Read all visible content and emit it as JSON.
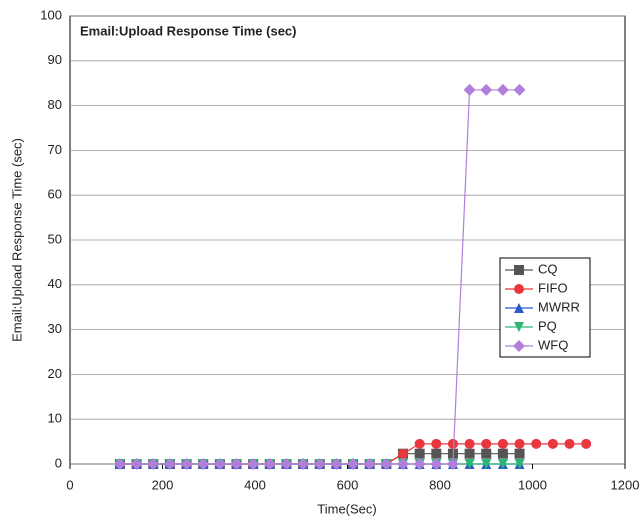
{
  "chart_data": {
    "type": "line",
    "title": "Email:Upload Response Time (sec)",
    "xlabel": "Time(Sec)",
    "ylabel": "Email:Upload Response Time (sec)",
    "x": [
      108,
      144,
      180,
      216,
      252,
      288,
      324,
      360,
      396,
      432,
      468,
      504,
      540,
      576,
      612,
      648,
      684,
      720,
      756,
      792,
      828,
      864,
      900,
      936,
      972,
      1008,
      1044,
      1080,
      1116
    ],
    "series": [
      {
        "name": "CQ",
        "color": "#555555",
        "marker": "square",
        "values": [
          0,
          0,
          0,
          0,
          0,
          0,
          0,
          0,
          0,
          0,
          0,
          0,
          0,
          0,
          0,
          0,
          0,
          2.3,
          2.3,
          2.3,
          2.3,
          2.3,
          2.3,
          2.3,
          2.3,
          null,
          null,
          null,
          null
        ]
      },
      {
        "name": "FIFO",
        "color": "#e8383d",
        "marker": "circle",
        "values": [
          0,
          0,
          0,
          0,
          0,
          0,
          0,
          0,
          0,
          0,
          0,
          0,
          0,
          0,
          0,
          0,
          0,
          2.3,
          4.5,
          4.5,
          4.5,
          4.5,
          4.5,
          4.5,
          4.5,
          4.5,
          4.5,
          4.5,
          4.5
        ]
      },
      {
        "name": "MWRR",
        "color": "#2a5cc8",
        "marker": "triangle",
        "values": [
          0,
          0,
          0,
          0,
          0,
          0,
          0,
          0,
          0,
          0,
          0,
          0,
          0,
          0,
          0,
          0,
          0,
          0,
          0,
          0,
          0,
          0,
          0,
          0,
          0,
          null,
          null,
          null,
          null
        ]
      },
      {
        "name": "PQ",
        "color": "#2bb673",
        "marker": "triangle-down",
        "values": [
          0,
          0,
          0,
          0,
          0,
          0,
          0,
          0,
          0,
          0,
          0,
          0,
          0,
          0,
          0,
          0,
          0,
          0,
          0,
          0,
          0,
          0,
          0,
          0,
          0,
          null,
          null,
          null,
          null
        ]
      },
      {
        "name": "WFQ",
        "color": "#b07fdc",
        "marker": "diamond",
        "values": [
          0,
          0,
          0,
          0,
          0,
          0,
          0,
          0,
          0,
          0,
          0,
          0,
          0,
          0,
          0,
          0,
          0,
          0,
          0,
          0,
          0,
          83.5,
          83.5,
          83.5,
          83.5,
          null,
          null,
          null,
          null
        ]
      }
    ],
    "xlim": [
      0,
      1200
    ],
    "xticks": [
      0,
      200,
      400,
      600,
      800,
      1000,
      1200
    ],
    "ylim": [
      0,
      100
    ],
    "yticks": [
      0,
      10,
      20,
      30,
      40,
      50,
      60,
      70,
      80,
      90,
      100
    ],
    "grid": true,
    "legend": "right"
  }
}
